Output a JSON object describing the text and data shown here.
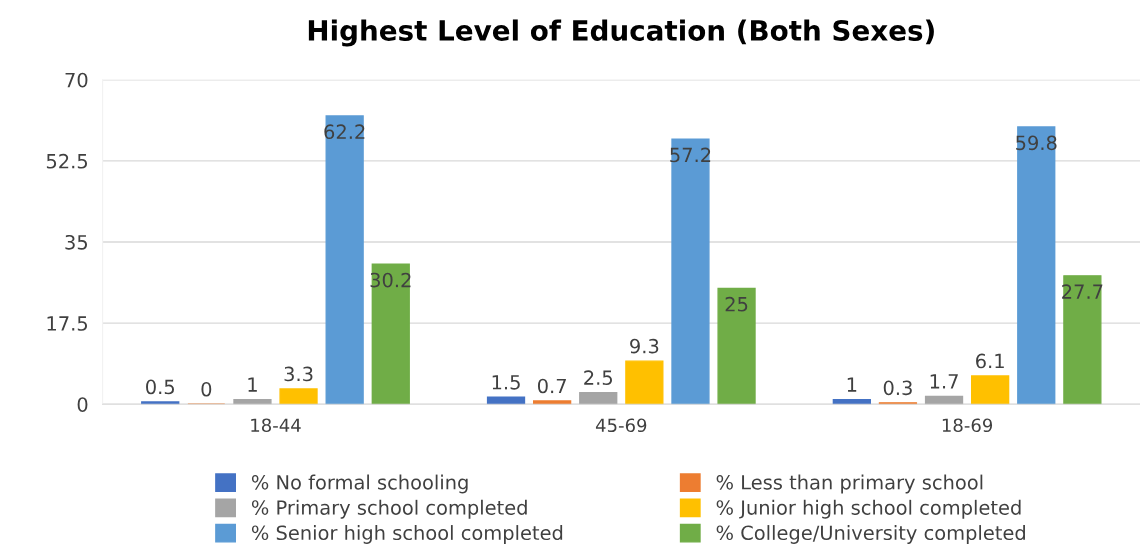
{
  "chart_data": {
    "type": "bar",
    "title": "Highest Level of Education (Both Sexes)",
    "categories": [
      "18-44",
      "45-69",
      "18-69"
    ],
    "series": [
      {
        "name": "% No formal schooling",
        "color": "#4472c4",
        "values": [
          0.5,
          1.5,
          1
        ]
      },
      {
        "name": "% Less than primary school",
        "color": "#ed7d31",
        "values": [
          0,
          0.7,
          0.3
        ]
      },
      {
        "name": "% Primary school completed",
        "color": "#a5a5a5",
        "values": [
          1,
          2.5,
          1.7
        ]
      },
      {
        "name": "% Junior high school completed",
        "color": "#ffc000",
        "values": [
          3.3,
          9.3,
          6.1
        ]
      },
      {
        "name": "% Senior high school completed",
        "color": "#5b9bd5",
        "values": [
          62.2,
          57.2,
          59.8
        ]
      },
      {
        "name": "% College/University completed",
        "color": "#70ad47",
        "values": [
          30.2,
          25,
          27.7
        ]
      }
    ],
    "ylim": [
      0,
      70
    ],
    "yticks": [
      0,
      17.5,
      35,
      52.5,
      70
    ],
    "grid": "y",
    "legend": "bottom",
    "data_labels": true
  }
}
